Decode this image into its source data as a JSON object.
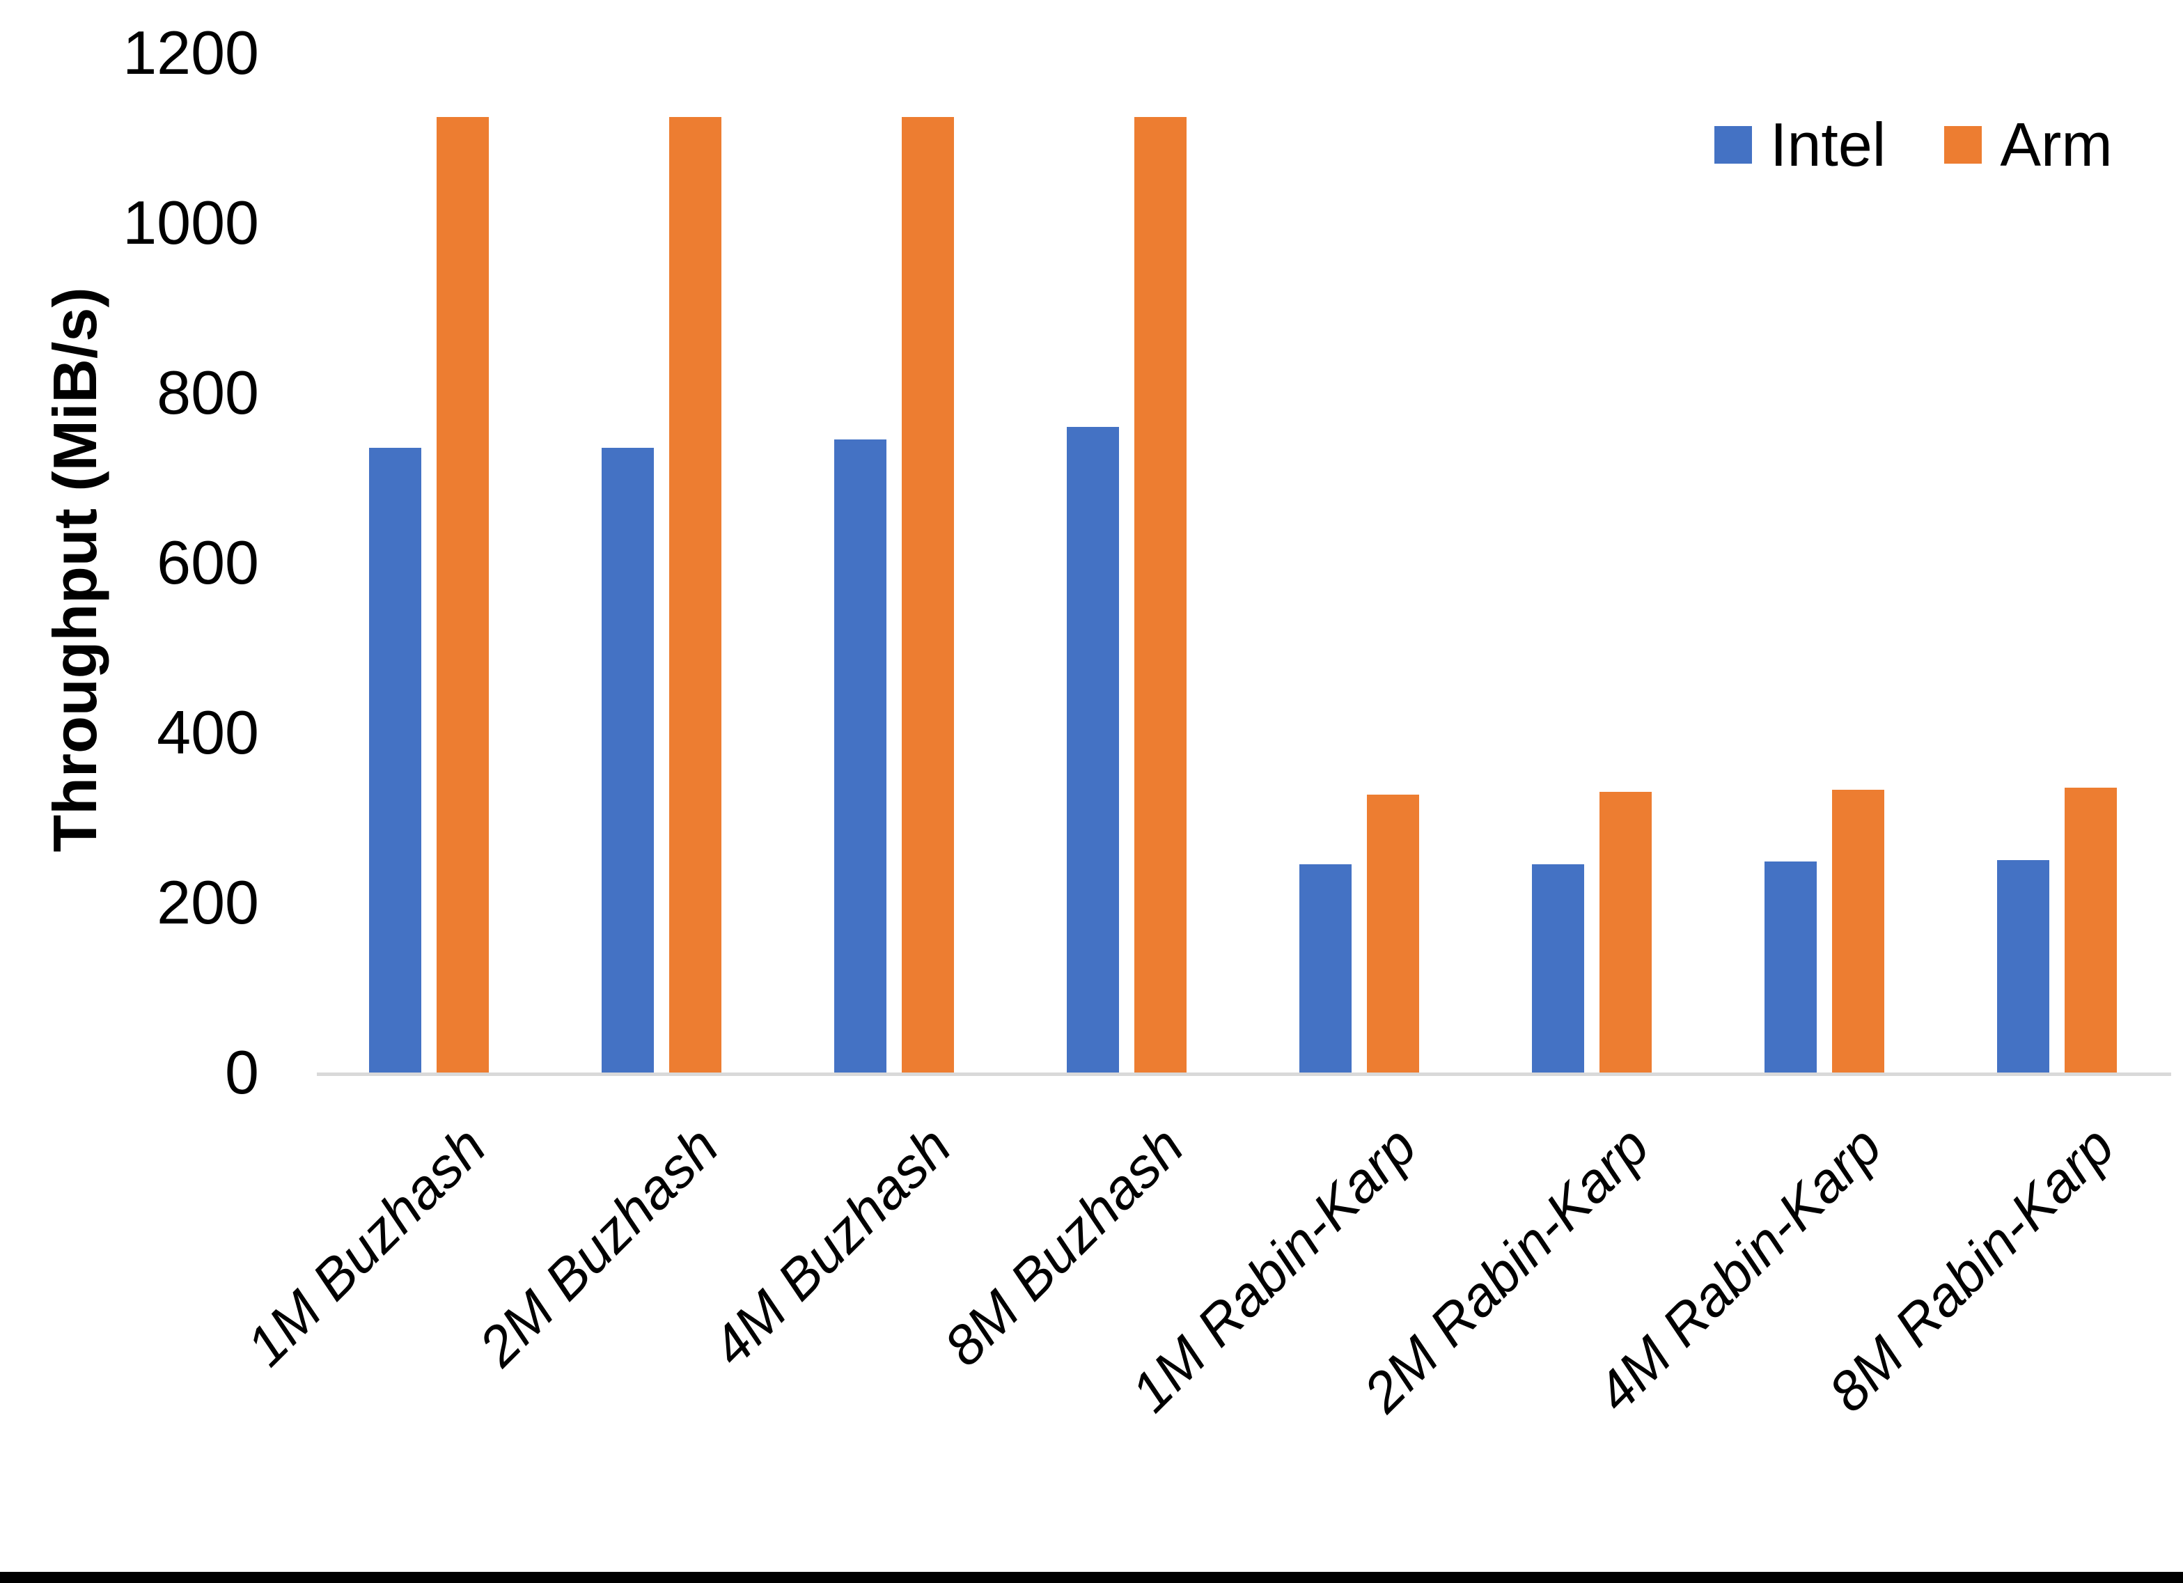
{
  "chart_data": {
    "type": "bar",
    "title": "",
    "xlabel": "",
    "ylabel": "Throughput (MiB/s)",
    "ylim": [
      0,
      1200
    ],
    "ytick_interval": 200,
    "yticks": [
      0,
      200,
      400,
      600,
      800,
      1000,
      1200
    ],
    "grid": false,
    "legend_position": "top-right",
    "axis_line_color": "#d9d9d9",
    "categories": [
      "1M Buzhash",
      "2M Buzhash",
      "4M Buzhash",
      "8M Buzhash",
      "1M Rabin-Karp",
      "2M Rabin-Karp",
      "4M Rabin-Karp",
      "8M Rabin-Karp"
    ],
    "series": [
      {
        "name": "Intel",
        "color": "#4472C4",
        "values": [
          735,
          735,
          745,
          760,
          245,
          245,
          248,
          250
        ]
      },
      {
        "name": "Arm",
        "color": "#ED7D31",
        "values": [
          1125,
          1125,
          1125,
          1125,
          327,
          330,
          333,
          335
        ]
      }
    ]
  }
}
